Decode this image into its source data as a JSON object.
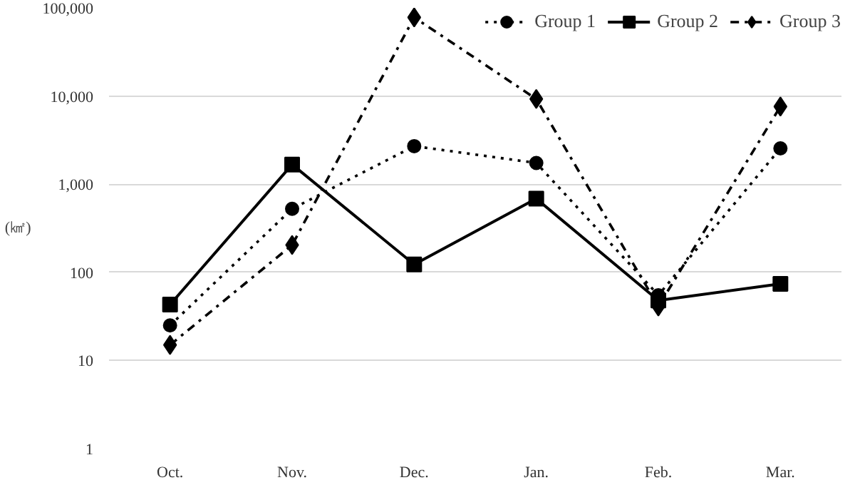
{
  "chart_data": {
    "type": "line",
    "ylabel": "(㎢)",
    "log": true,
    "categories": [
      "Oct.",
      "Nov.",
      "Dec.",
      "Jan.",
      "Feb.",
      "Mar."
    ],
    "ylim": [
      1,
      100000
    ],
    "yticks": [
      {
        "value": 1,
        "label": "1"
      },
      {
        "value": 10,
        "label": "10"
      },
      {
        "value": 100,
        "label": "100"
      },
      {
        "value": 1000,
        "label": "1,000"
      },
      {
        "value": 10000,
        "label": "10,000"
      },
      {
        "value": 100000,
        "label": "100,000"
      }
    ],
    "grid": "y",
    "legend": "top right",
    "series": [
      {
        "name": "Group 1",
        "color": "#000000",
        "marker": "circle",
        "line_style": "dotted",
        "values": [
          25,
          525,
          2700,
          1740,
          55,
          2550
        ]
      },
      {
        "name": "Group 2",
        "color": "#000000",
        "marker": "square",
        "line_style": "solid",
        "values": [
          43,
          1670,
          123,
          685,
          48,
          74
        ]
      },
      {
        "name": "Group 3",
        "color": "#000000",
        "marker": "diamond",
        "line_style": "dashdot",
        "values": [
          15,
          204,
          78000,
          9250,
          41,
          7600
        ]
      }
    ]
  }
}
